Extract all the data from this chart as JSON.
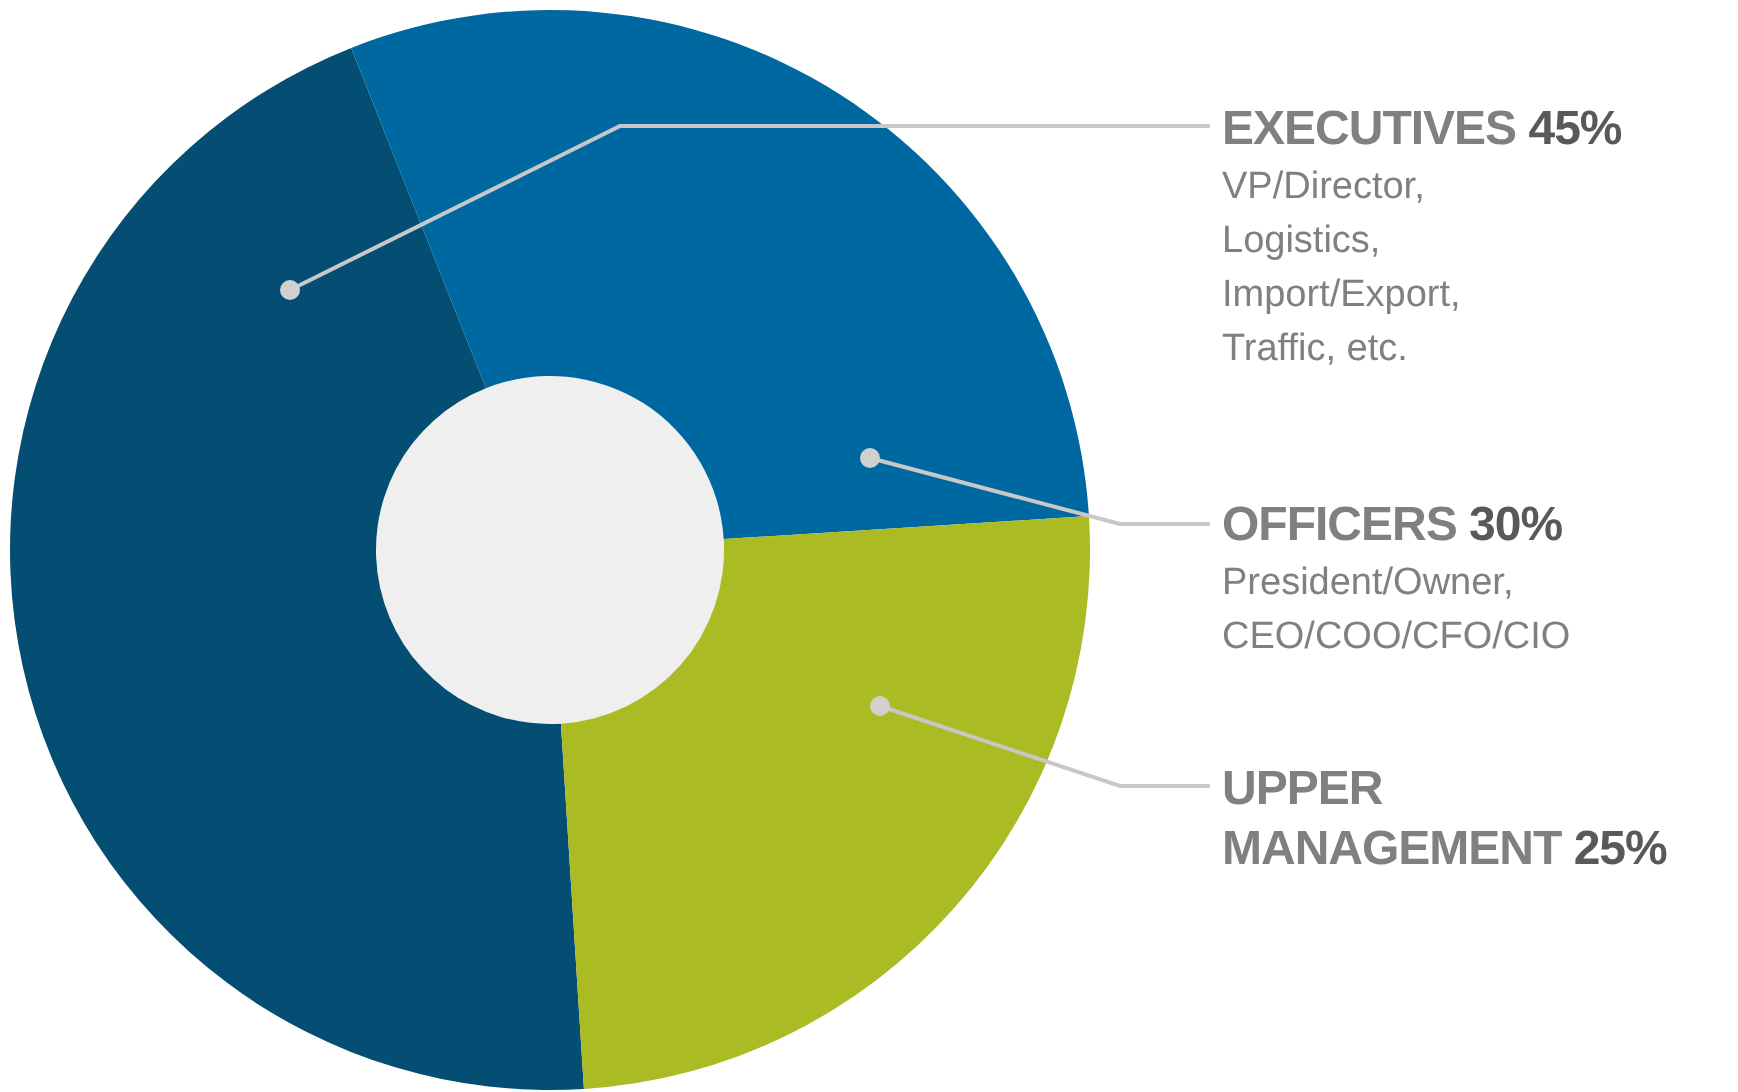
{
  "chart_data": {
    "type": "donut",
    "categories": [
      "EXECUTIVES",
      "OFFICERS",
      "UPPER MANAGEMENT"
    ],
    "values": [
      45,
      30,
      25
    ],
    "colors": [
      "#034e72",
      "#0068a0",
      "#abbb23"
    ],
    "value_labels": [
      "45%",
      "30%",
      "25%"
    ],
    "annotations": [
      "VP/Director, Logistics, Import/Export, Traffic, etc.",
      "President/Owner, CEO/COO/CFO/CIO"
    ]
  }
}
